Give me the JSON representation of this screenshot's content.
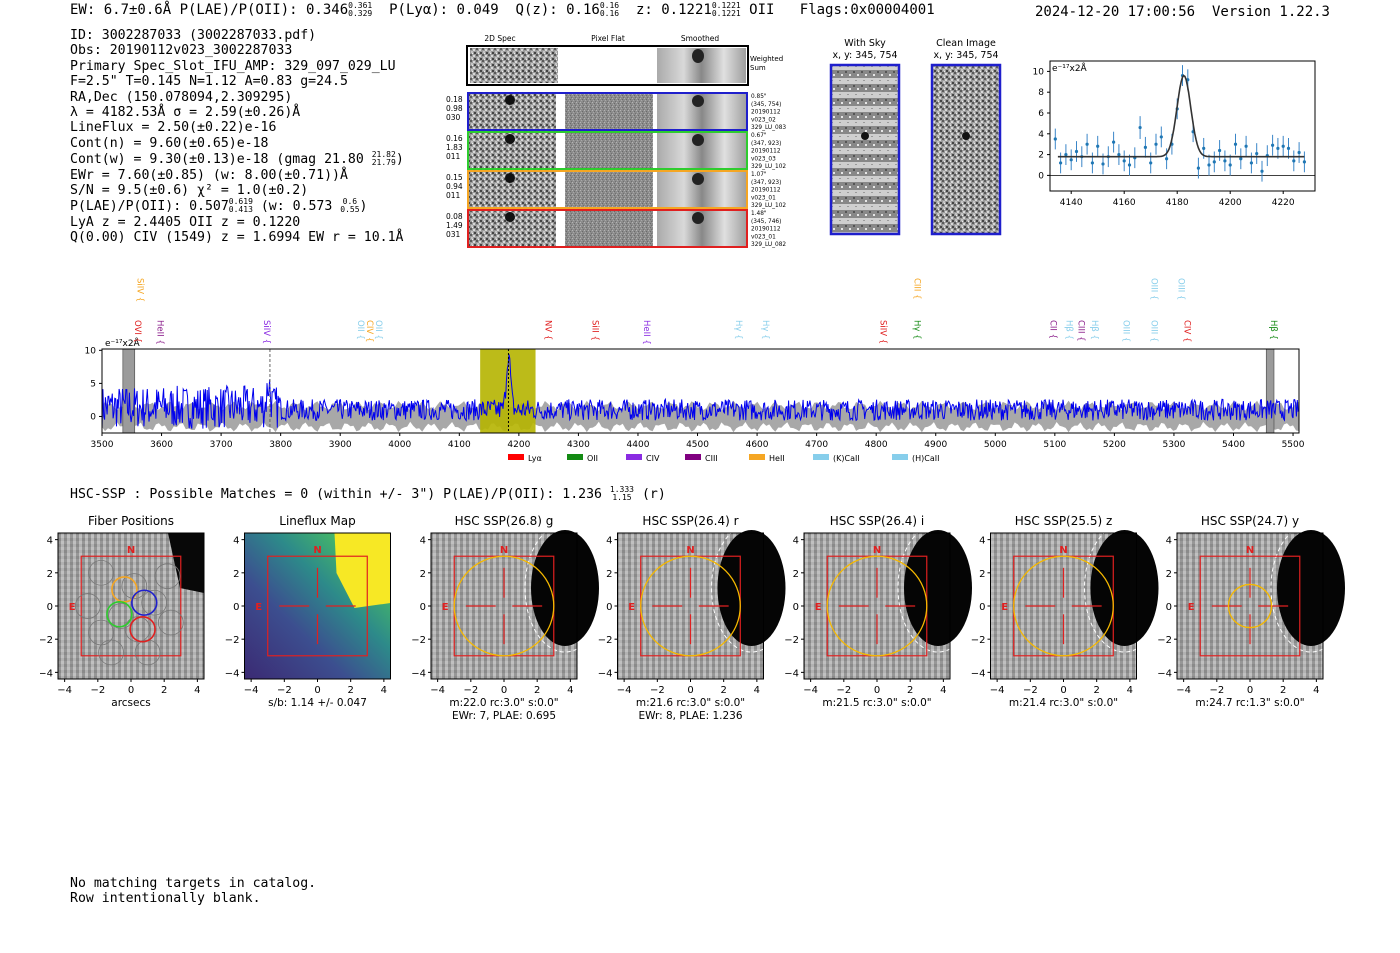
{
  "header": {
    "summary_line": "EW: 6.7±0.6Å  P(LAE)/P(OII): 0.346",
    "summary_plae_hi": "0.361",
    "summary_plae_lo": "0.329",
    "summary_plya": "P(Lyα): 0.049",
    "summary_qz": "Q(z): 0.16",
    "summary_qz_hi": "0.16",
    "summary_qz_lo": "0.16",
    "summary_z": "z: 0.1221",
    "summary_z_hi": "0.1221",
    "summary_z_lo": "0.1221",
    "summary_line_id": "OII",
    "summary_flags": "Flags:0x00004001",
    "timestamp": "2024-12-20 17:00:56",
    "version": "Version 1.22.3"
  },
  "info": {
    "id": "ID: 3002287033 (3002287033.pdf)",
    "obs": "Obs: 20190112v023_3002287033",
    "primary": "Primary Spec_Slot_IFU_AMP: 329_097_029_LU",
    "fiber": "F=2.5\"  T=0.145  N=1.12  A=0.83  g=24.5",
    "radec": "RA,Dec (150.078094,2.309295)",
    "lambda": "λ = 4182.53Å  σ = 2.59(±0.26)Å",
    "lineflux": "LineFlux = 2.50(±0.22)e-16",
    "contn": "Cont(n) = 9.60(±0.65)e-18",
    "contw": "Cont(w) = 9.30(±0.13)e-18 (gmag 21.80",
    "contw_hi": "21.82",
    "contw_lo": "21.79",
    "ewr": "EWr = 7.60(±0.85) (w: 8.00(±0.71))Å",
    "sn": "S/N = 9.5(±0.6)  χ² = 1.0(±0.2)",
    "plae": "P(LAE)/P(OII): 0.507",
    "plae_hi": "0.619",
    "plae_lo": "0.413",
    "plae_w": "(w: 0.573",
    "plae_w_hi": "0.6",
    "plae_w_lo": "0.55",
    "lya": "LyA z = 2.4405  OII z = 0.1220",
    "civ": "Q(0.00) CIV (1549) z = 1.6994  EW r = 10.1Å"
  },
  "cutouts": {
    "col_labels": [
      "2D Spec",
      "Pixel Flat",
      "Smoothed"
    ],
    "weighted_sum_label": "Weighted Sum",
    "rows": [
      {
        "left": [
          "0.18",
          "0.98",
          "030"
        ],
        "right": [
          "0.85\"",
          "(345, 754)",
          "20190112",
          "v023_02",
          "329_LU_083"
        ],
        "color": "#1f1fcc"
      },
      {
        "left": [
          "0.16",
          "1.83",
          "011"
        ],
        "right": [
          "0.67\"",
          "(347, 923)",
          "20190112",
          "v023_03",
          "329_LU_102"
        ],
        "color": "#2ecc2e"
      },
      {
        "left": [
          "0.15",
          "0.94",
          "011"
        ],
        "right": [
          "1.07\"",
          "(347, 923)",
          "20190112",
          "v023_01",
          "329_LU_102"
        ],
        "color": "#f5a623"
      },
      {
        "left": [
          "0.08",
          "1.49",
          "031"
        ],
        "right": [
          "1.48\"",
          "(345, 746)",
          "20190112",
          "v023_01",
          "329_LU_082"
        ],
        "color": "#e02020"
      }
    ]
  },
  "sky": {
    "with_sky_title": "With Sky",
    "with_sky_xy": "x, y: 345, 754",
    "clean_title": "Clean Image",
    "clean_xy": "x, y: 345, 754"
  },
  "chart_data": [
    {
      "type": "line",
      "name": "zoom-line-fit",
      "ylabel": "e⁻¹⁷x2Å",
      "xlim": [
        4132,
        4232
      ],
      "ylim": [
        -1.5,
        11
      ],
      "xticks": [
        4140,
        4160,
        4180,
        4200,
        4220
      ],
      "yticks": [
        0,
        2,
        4,
        6,
        8,
        10
      ],
      "fit": {
        "continuum": 1.8,
        "amp": 7.8,
        "center": 4182.53,
        "sigma": 2.59
      },
      "x": [
        4134,
        4136,
        4138,
        4140,
        4142,
        4144,
        4146,
        4148,
        4150,
        4152,
        4154,
        4156,
        4158,
        4160,
        4162,
        4164,
        4166,
        4168,
        4170,
        4172,
        4174,
        4176,
        4178,
        4180,
        4182,
        4184,
        4186,
        4188,
        4190,
        4192,
        4194,
        4196,
        4198,
        4200,
        4202,
        4204,
        4206,
        4208,
        4210,
        4212,
        4214,
        4216,
        4218,
        4220,
        4222,
        4224,
        4226,
        4228
      ],
      "values": [
        3.5,
        1.2,
        2.0,
        1.5,
        2.3,
        1.8,
        3.0,
        1.2,
        2.8,
        1.1,
        1.8,
        3.2,
        2.0,
        1.4,
        1.0,
        1.7,
        4.6,
        2.7,
        1.2,
        3.0,
        3.7,
        1.6,
        3.0,
        6.4,
        9.6,
        9.2,
        4.2,
        0.7,
        2.6,
        1.0,
        1.3,
        2.4,
        1.4,
        1.0,
        3.0,
        1.6,
        2.8,
        1.2,
        2.1,
        0.4,
        1.9,
        2.9,
        2.6,
        2.8,
        2.6,
        1.4,
        2.2,
        1.3
      ],
      "errors": [
        1.0,
        1.0,
        1.0,
        1.0,
        1.0,
        1.0,
        1.0,
        1.0,
        1.0,
        1.0,
        1.0,
        1.0,
        1.0,
        1.0,
        1.0,
        1.0,
        1.1,
        1.0,
        1.0,
        1.0,
        1.0,
        1.0,
        1.0,
        1.0,
        1.0,
        1.0,
        1.0,
        1.0,
        1.0,
        1.0,
        1.0,
        1.0,
        1.0,
        1.0,
        1.0,
        1.0,
        1.0,
        1.0,
        1.0,
        1.0,
        1.0,
        1.0,
        1.0,
        1.0,
        1.0,
        1.0,
        1.0,
        1.0
      ]
    },
    {
      "type": "line",
      "name": "full-spectrum",
      "ylabel": "e⁻¹⁷x2Å",
      "xlim": [
        3500,
        5510
      ],
      "ylim": [
        -2.5,
        10.2
      ],
      "xticks": [
        3500,
        3600,
        3700,
        3800,
        3900,
        4000,
        4100,
        4200,
        4300,
        4400,
        4500,
        4600,
        4700,
        4800,
        4900,
        5000,
        5100,
        5200,
        5300,
        5400,
        5500
      ],
      "yticks": [
        0,
        5,
        10
      ],
      "highlight_range": [
        4135,
        4228
      ],
      "line_marker": 4182.53,
      "siiv_marker": 3782,
      "masked_ranges": [
        [
          3535,
          3555
        ],
        [
          5455,
          5468
        ]
      ],
      "line_labels": [
        {
          "text": "SiIV",
          "wave": 3560,
          "color": "#f5a623",
          "row": "top"
        },
        {
          "text": "OVI",
          "wave": 3555,
          "color": "#e02020",
          "row": "bottom"
        },
        {
          "text": "HeII",
          "wave": 3593,
          "color": "#8a1c8a",
          "row": "bottom"
        },
        {
          "text": "SiIV",
          "wave": 3772,
          "color": "#8a2be2",
          "row": "bottom"
        },
        {
          "text": "OII",
          "wave": 3930,
          "color": "#87ceeb",
          "row": "bottom"
        },
        {
          "text": "CIV",
          "wave": 3945,
          "color": "#f5a623",
          "row": "bottom"
        },
        {
          "text": "OII",
          "wave": 3960,
          "color": "#87ceeb",
          "row": "bottom"
        },
        {
          "text": "NV",
          "wave": 4245,
          "color": "#e02020",
          "row": "bottom"
        },
        {
          "text": "SiII",
          "wave": 4324,
          "color": "#e02020",
          "row": "bottom"
        },
        {
          "text": "HeII",
          "wave": 4410,
          "color": "#8a2be2",
          "row": "bottom"
        },
        {
          "text": "Hγ",
          "wave": 4565,
          "color": "#87ceeb",
          "row": "bottom"
        },
        {
          "text": "Hγ",
          "wave": 4610,
          "color": "#87ceeb",
          "row": "bottom"
        },
        {
          "text": "CIII",
          "wave": 4864,
          "color": "#f5a623",
          "row": "top"
        },
        {
          "text": "SiIV",
          "wave": 4807,
          "color": "#e02020",
          "row": "bottom"
        },
        {
          "text": "Hγ",
          "wave": 4864,
          "color": "#138a13",
          "row": "bottom"
        },
        {
          "text": "CII",
          "wave": 5093,
          "color": "#8a1c8a",
          "row": "bottom"
        },
        {
          "text": "Hβ",
          "wave": 5120,
          "color": "#87ceeb",
          "row": "bottom"
        },
        {
          "text": "CIII",
          "wave": 5140,
          "color": "#8a1c8a",
          "row": "bottom"
        },
        {
          "text": "Hβ",
          "wave": 5162,
          "color": "#87ceeb",
          "row": "bottom"
        },
        {
          "text": "OIII",
          "wave": 5215,
          "color": "#87ceeb",
          "row": "bottom"
        },
        {
          "text": "OIII",
          "wave": 5262,
          "color": "#87ceeb",
          "row": "top"
        },
        {
          "text": "OIII",
          "wave": 5262,
          "color": "#87ceeb",
          "row": "bottom"
        },
        {
          "text": "OIII",
          "wave": 5308,
          "color": "#87ceeb",
          "row": "top"
        },
        {
          "text": "CIV",
          "wave": 5318,
          "color": "#e02020",
          "row": "bottom"
        },
        {
          "text": "Hβ",
          "wave": 5463,
          "color": "#138a13",
          "row": "bottom"
        }
      ],
      "legend": [
        {
          "label": "Lyα",
          "color": "#ff0000"
        },
        {
          "label": "OII",
          "color": "#138a13"
        },
        {
          "label": "CIV",
          "color": "#8a2be2"
        },
        {
          "label": "CIII",
          "color": "#800080"
        },
        {
          "label": "HeII",
          "color": "#f5a623"
        },
        {
          "label": "(K)CaII",
          "color": "#87ceeb"
        },
        {
          "label": "(H)CaII",
          "color": "#87ceeb"
        }
      ],
      "legend_position": "below",
      "series": [
        {
          "name": "spectrum",
          "color": "#0000ff"
        },
        {
          "name": "error band",
          "color": "#999999"
        }
      ]
    }
  ],
  "hsc": {
    "summary": "HSC-SSP : Possible Matches = 0 (within +/- 3\")  P(LAE)/P(OII): 1.236",
    "summary_hi": "1.333",
    "summary_lo": "1.15",
    "summary_band": "(r)",
    "panels": [
      {
        "title": "Fiber Positions",
        "caption1": "arcsecs",
        "caption2": "",
        "circle_r": 0
      },
      {
        "title": "Lineflux Map",
        "caption1": "s/b: 1.14 +/- 0.047",
        "caption2": "",
        "circle_r": 0
      },
      {
        "title": "HSC SSP(26.8) g",
        "caption1": "m:22.0 rc:3.0\"  s:0.0\"",
        "caption2": "EWr: 7, PLAE: 0.695",
        "circle_r": 3.0
      },
      {
        "title": "HSC SSP(26.4) r",
        "caption1": "m:21.6 rc:3.0\"  s:0.0\"",
        "caption2": "EWr: 8, PLAE: 1.236",
        "circle_r": 3.0
      },
      {
        "title": "HSC SSP(26.4) i",
        "caption1": "m:21.5 rc:3.0\"  s:0.0\"",
        "caption2": "",
        "circle_r": 3.0
      },
      {
        "title": "HSC SSP(25.5) z",
        "caption1": "m:21.4 rc:3.0\"  s:0.0\"",
        "caption2": "",
        "circle_r": 3.0
      },
      {
        "title": "HSC SSP(24.7) y",
        "caption1": "m:24.7 rc:1.3\"  s:0.0\"",
        "caption2": "",
        "circle_r": 1.3
      }
    ],
    "axis_ticks": [
      "−4",
      "−2",
      "0",
      "2",
      "4"
    ],
    "north_label": "N",
    "east_label": "E"
  },
  "footer": {
    "line1": "No matching targets in catalog.",
    "line2": "Row intentionally blank."
  }
}
